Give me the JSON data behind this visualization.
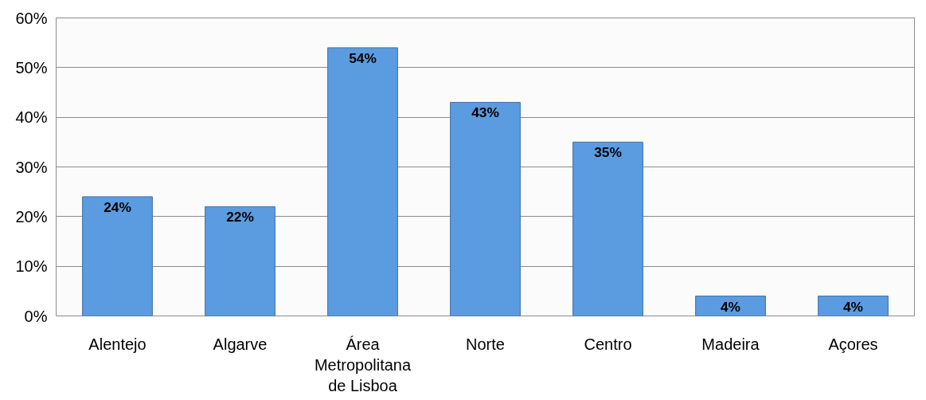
{
  "chart_data": {
    "type": "bar",
    "categories": [
      "Alentejo",
      "Algarve",
      "Área Metropolitana de Lisboa",
      "Norte",
      "Centro",
      "Madeira",
      "Açores"
    ],
    "values": [
      24,
      22,
      54,
      43,
      35,
      4,
      4
    ],
    "value_labels": [
      "24%",
      "22%",
      "54%",
      "43%",
      "35%",
      "4%",
      "4%"
    ],
    "color": "#5b9be0",
    "ylim": [
      0,
      60
    ],
    "yticks": [
      {
        "value": 0,
        "label": "0%"
      },
      {
        "value": 10,
        "label": "10%"
      },
      {
        "value": 20,
        "label": "20%"
      },
      {
        "value": 30,
        "label": "30%"
      },
      {
        "value": 40,
        "label": "40%"
      },
      {
        "value": 50,
        "label": "50%"
      },
      {
        "value": 60,
        "label": "60%"
      }
    ],
    "grid": "y"
  }
}
